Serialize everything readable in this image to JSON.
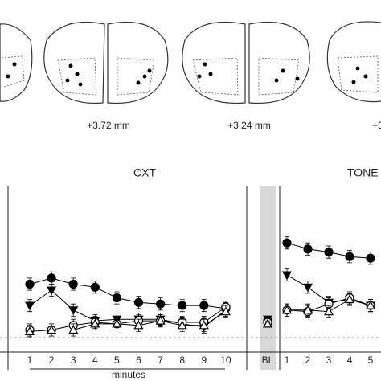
{
  "sections": {
    "labels": [
      "+3.72 mm",
      "+3.24 mm",
      "+3"
    ]
  },
  "chart_data": [
    {
      "type": "line",
      "title": "CXT",
      "xlabel": "minutes",
      "categories": [
        "1",
        "2",
        "3",
        "4",
        "5",
        "6",
        "7",
        "8",
        "9",
        "10"
      ],
      "ylim": [
        0,
        100
      ],
      "series": [
        {
          "color": "#000000",
          "marker": "circle-filled",
          "values": [
            35,
            39,
            35,
            33,
            26,
            23,
            22,
            21,
            21,
            19
          ],
          "errors": [
            4,
            4,
            4,
            4,
            4,
            4,
            4,
            4,
            4,
            4
          ]
        },
        {
          "color": "#000000",
          "marker": "triangle-down-filled",
          "values": [
            21,
            31,
            18,
            11,
            12,
            12,
            12,
            9,
            7,
            18
          ],
          "errors": [
            4,
            4,
            4,
            4,
            4,
            4,
            4,
            4,
            4,
            4
          ]
        },
        {
          "color": "#000000",
          "marker": "circle-open",
          "values": [
            5,
            5,
            8,
            10,
            9,
            11,
            11,
            10,
            10,
            20
          ],
          "errors": [
            4,
            4,
            4,
            4,
            4,
            4,
            4,
            4,
            4,
            4
          ]
        },
        {
          "color": "#000000",
          "marker": "triangle-up-open",
          "values": [
            4,
            5,
            5,
            9,
            9,
            8,
            11,
            8,
            8,
            17
          ],
          "errors": [
            4,
            4,
            4,
            4,
            4,
            4,
            4,
            4,
            4,
            4
          ]
        }
      ]
    },
    {
      "type": "line",
      "title": "TONE",
      "categories": [
        "BL",
        "1",
        "2",
        "3",
        "4",
        "5"
      ],
      "ylim": [
        0,
        100
      ],
      "series": [
        {
          "color": "#000000",
          "marker": "circle-filled",
          "values": [
            11,
            62,
            58,
            56,
            53,
            52
          ],
          "errors": [
            2,
            4,
            4,
            4,
            4,
            4
          ]
        },
        {
          "color": "#000000",
          "marker": "triangle-down-filled",
          "values": [
            12,
            41,
            33,
            23,
            25,
            21
          ],
          "errors": [
            2,
            4,
            4,
            4,
            4,
            4
          ]
        },
        {
          "color": "#000000",
          "marker": "circle-open",
          "values": [
            10,
            18,
            17,
            22,
            26,
            21
          ],
          "errors": [
            2,
            4,
            4,
            4,
            4,
            4
          ]
        },
        {
          "color": "#000000",
          "marker": "triangle-up-open",
          "values": [
            9,
            18,
            18,
            17,
            25,
            21
          ],
          "errors": [
            2,
            4,
            4,
            4,
            4,
            4
          ]
        }
      ]
    }
  ]
}
